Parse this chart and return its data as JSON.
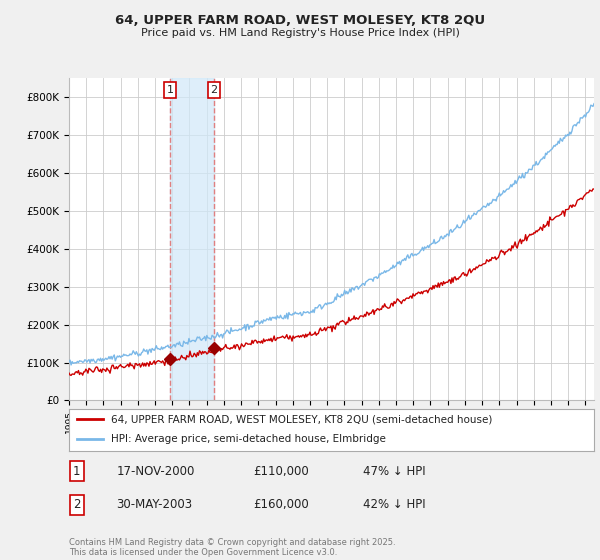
{
  "title": "64, UPPER FARM ROAD, WEST MOLESEY, KT8 2QU",
  "subtitle": "Price paid vs. HM Land Registry's House Price Index (HPI)",
  "xlim_start": 1995.0,
  "xlim_end": 2025.5,
  "ylim_min": 0,
  "ylim_max": 850000,
  "hpi_color": "#7ab8e8",
  "price_color": "#cc0000",
  "transaction1_date": 2000.88,
  "transaction1_price": 110000,
  "transaction2_date": 2003.42,
  "transaction2_price": 160000,
  "vline_color": "#e08080",
  "shade_color": "#d0e8f8",
  "marker_color": "#990000",
  "legend_label1": "64, UPPER FARM ROAD, WEST MOLESEY, KT8 2QU (semi-detached house)",
  "legend_label2": "HPI: Average price, semi-detached house, Elmbridge",
  "table_row1": [
    "1",
    "17-NOV-2000",
    "£110,000",
    "47% ↓ HPI"
  ],
  "table_row2": [
    "2",
    "30-MAY-2003",
    "£160,000",
    "42% ↓ HPI"
  ],
  "footnote": "Contains HM Land Registry data © Crown copyright and database right 2025.\nThis data is licensed under the Open Government Licence v3.0.",
  "background_color": "#f0f0f0",
  "plot_background": "#ffffff",
  "grid_color": "#cccccc"
}
